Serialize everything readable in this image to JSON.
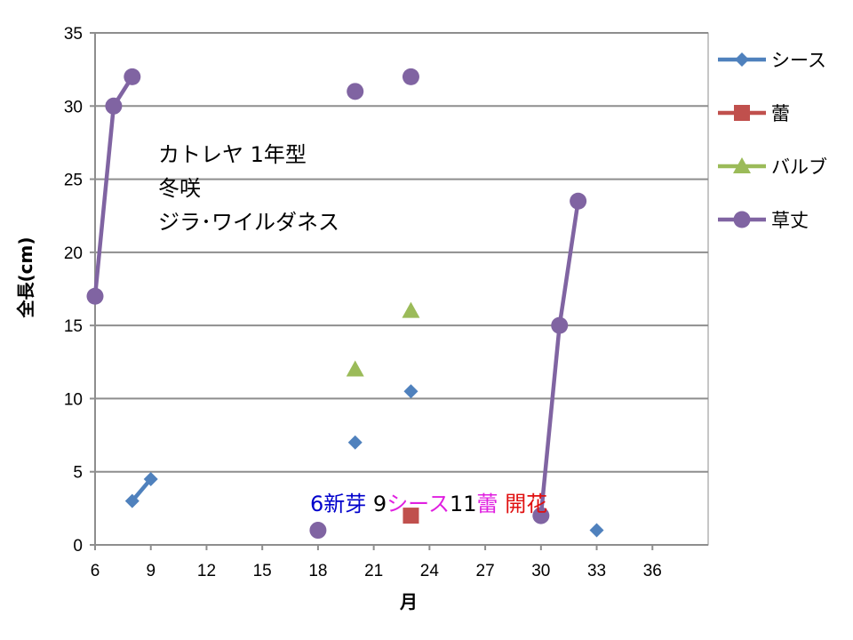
{
  "chart_data": {
    "type": "scatter",
    "title": "",
    "xlabel": "月",
    "ylabel": "全長(cm)",
    "xlim": [
      6,
      39
    ],
    "ylim": [
      0,
      35
    ],
    "x_ticks": [
      6,
      9,
      12,
      15,
      18,
      21,
      24,
      27,
      30,
      33,
      36
    ],
    "y_ticks": [
      0,
      5,
      10,
      15,
      20,
      25,
      30,
      35
    ],
    "grid": "horizontal",
    "legend_position": "right",
    "series": [
      {
        "name": "シース",
        "color": "#4f81bd",
        "marker": "diamond",
        "points": [
          [
            8,
            3
          ],
          [
            9,
            4.5
          ],
          [
            20,
            7
          ],
          [
            23,
            10.5
          ],
          [
            33,
            1
          ]
        ],
        "lines": [
          [
            [
              8,
              3
            ],
            [
              9,
              4.5
            ]
          ]
        ]
      },
      {
        "name": "蕾",
        "color": "#c0504d",
        "marker": "square",
        "points": [
          [
            23,
            2
          ]
        ],
        "lines": []
      },
      {
        "name": "バルブ",
        "color": "#9bbb59",
        "marker": "triangle",
        "points": [
          [
            20,
            12
          ],
          [
            23,
            16
          ]
        ],
        "lines": []
      },
      {
        "name": "草丈",
        "color": "#8064a2",
        "marker": "circle",
        "points": [
          [
            6,
            17
          ],
          [
            7,
            30
          ],
          [
            8,
            32
          ],
          [
            18,
            1
          ],
          [
            20,
            31
          ],
          [
            23,
            32
          ],
          [
            30,
            2
          ],
          [
            31,
            15
          ],
          [
            32,
            23.5
          ]
        ],
        "lines": [
          [
            [
              6,
              17
            ],
            [
              7,
              30
            ],
            [
              8,
              32
            ]
          ],
          [
            [
              30,
              2
            ],
            [
              31,
              15
            ],
            [
              32,
              23.5
            ]
          ]
        ]
      }
    ],
    "notes": [
      "カトレヤ  1年型",
      "冬咲",
      "ジラ･ワイルダネス"
    ],
    "annotations": [
      {
        "text": "6新芽",
        "color": "#0000cc"
      },
      {
        "text": "9",
        "color": "#000000"
      },
      {
        "text": "シース",
        "color": "#e020e0"
      },
      {
        "text": "11",
        "color": "#000000"
      },
      {
        "text": "蕾",
        "color": "#e020e0"
      },
      {
        "text": "開花",
        "color": "#e01010"
      }
    ]
  }
}
